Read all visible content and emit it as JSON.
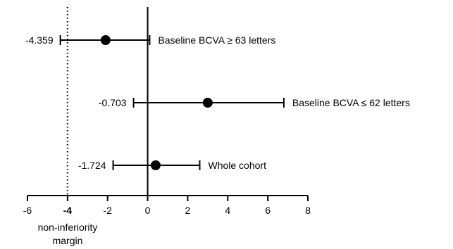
{
  "chart_data": {
    "type": "forest",
    "x_axis": {
      "range": [
        -6,
        8
      ],
      "ticks": [
        -6,
        -4,
        -2,
        0,
        2,
        4,
        6,
        8
      ],
      "tick_labels": [
        "-6",
        "-4",
        "-2",
        "0",
        "2",
        "4",
        "6",
        "8"
      ],
      "emphasized_tick": -4
    },
    "reference_lines": [
      {
        "x": 0,
        "style": "solid"
      },
      {
        "x": -4,
        "style": "dotted",
        "label_lines": [
          "non-inferiority",
          "margin"
        ]
      }
    ],
    "rows": [
      {
        "label": "Baseline BCVA ≥ 63 letters",
        "estimate": -2.1,
        "lower": -4.359,
        "upper": 0.1,
        "lower_label": "-4.359"
      },
      {
        "label": "Baseline BCVA ≤ 62 letters",
        "estimate": 3.0,
        "lower": -0.703,
        "upper": 6.8,
        "lower_label": "-0.703"
      },
      {
        "label": "Whole cohort",
        "estimate": 0.4,
        "lower": -1.724,
        "upper": 2.6,
        "lower_label": "-1.724"
      }
    ]
  }
}
